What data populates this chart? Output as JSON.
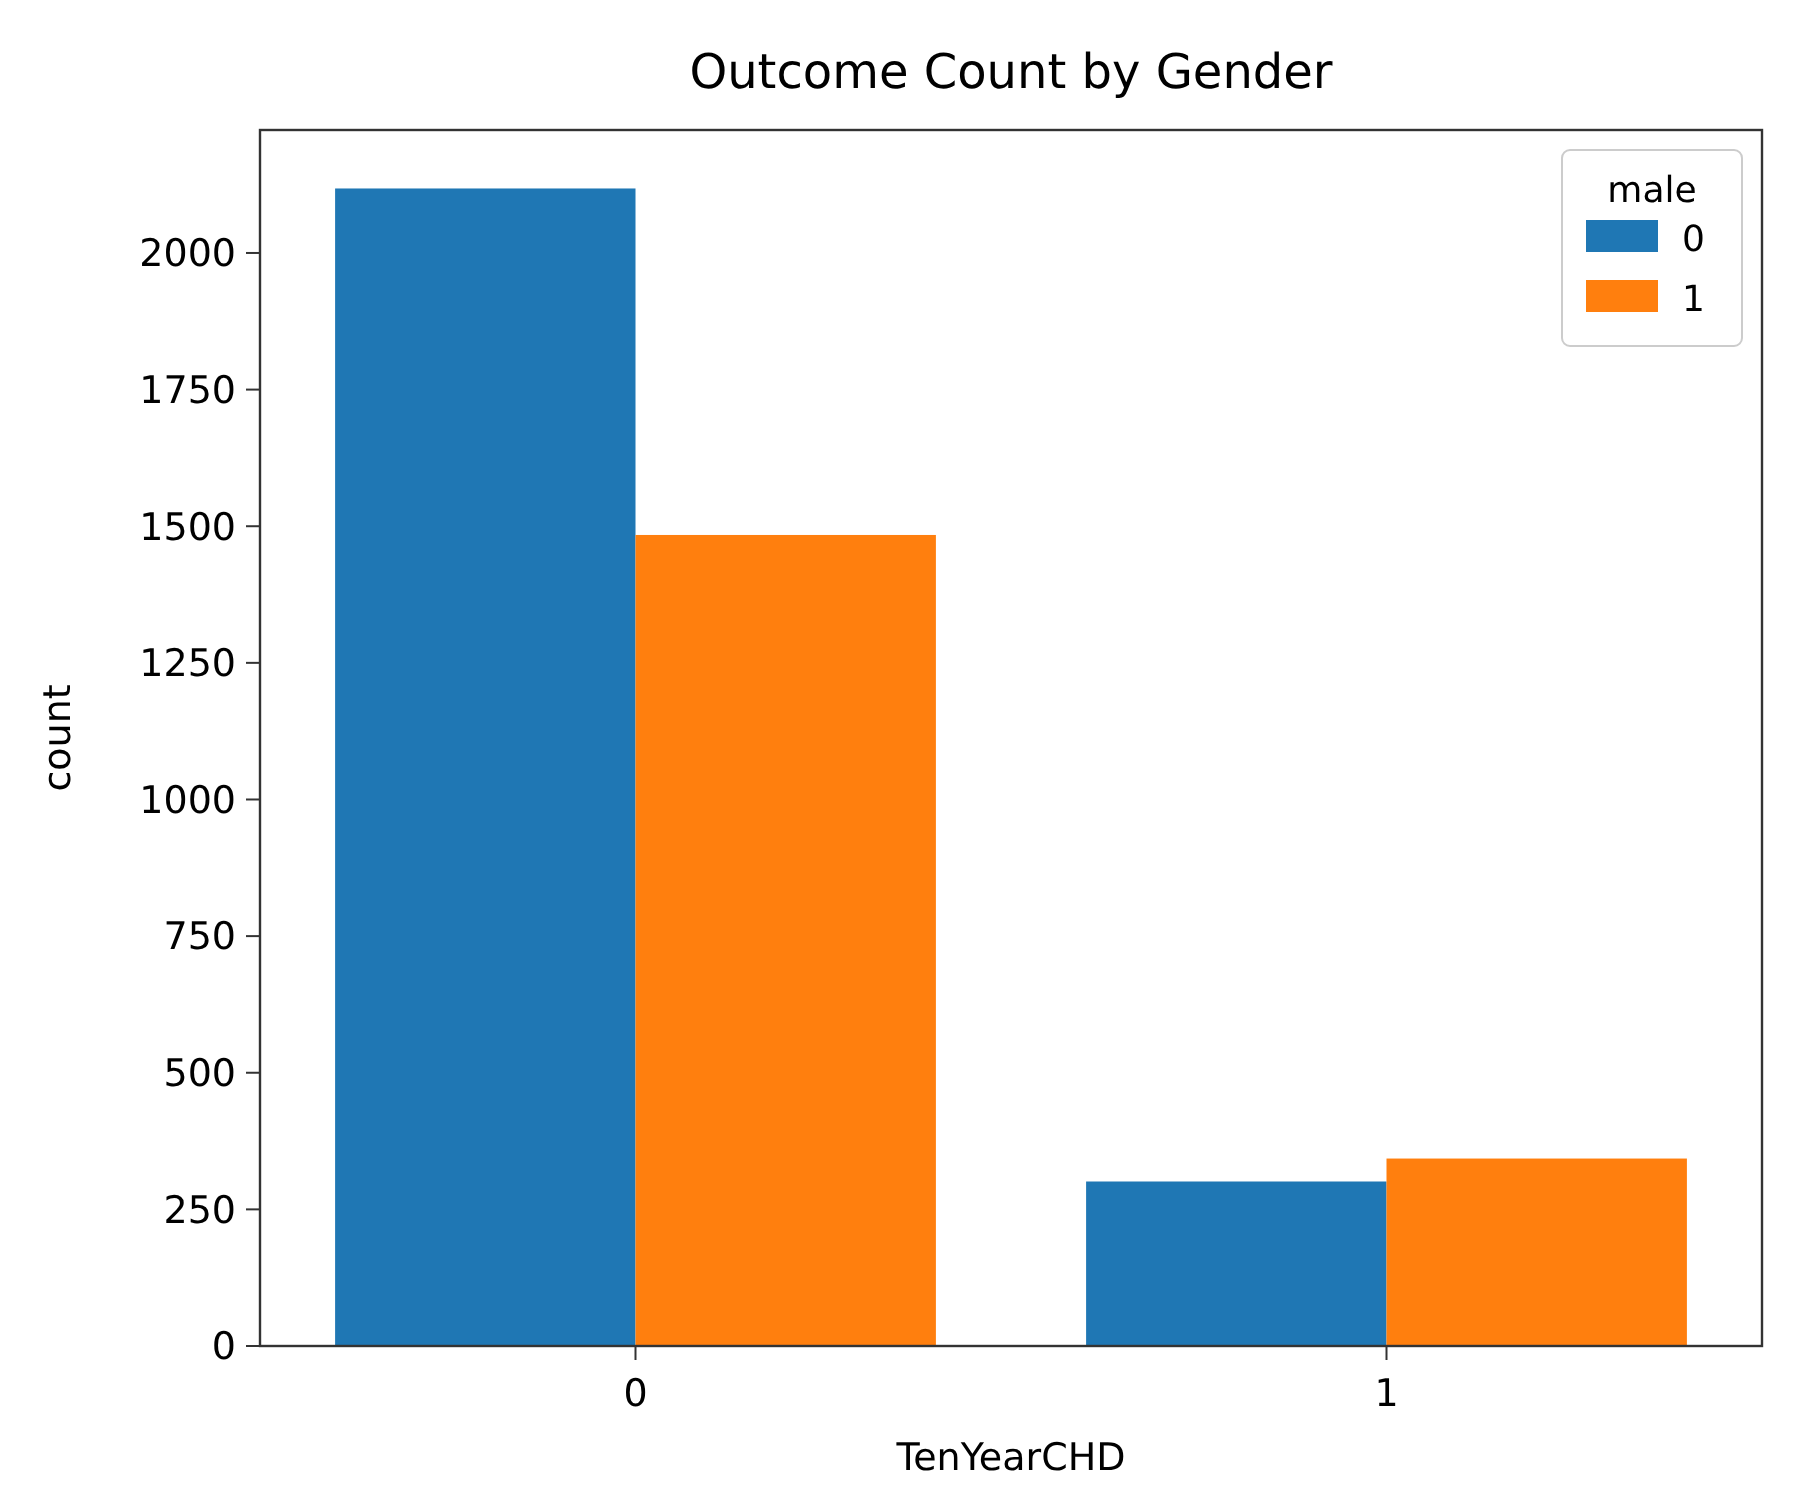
{
  "chart_data": {
    "type": "bar",
    "title": "Outcome Count by Gender",
    "xlabel": "TenYearCHD",
    "ylabel": "count",
    "legend_title": "male",
    "categories": [
      "0",
      "1"
    ],
    "series": [
      {
        "name": "0",
        "color": "#1f77b4",
        "values": [
          2118,
          301
        ]
      },
      {
        "name": "1",
        "color": "#ff7f0e",
        "values": [
          1484,
          343
        ]
      }
    ],
    "ylim": [
      0,
      2225
    ],
    "yticks": [
      0,
      250,
      500,
      750,
      1000,
      1250,
      1500,
      1750,
      2000
    ],
    "legend": "top right",
    "grid": false
  }
}
